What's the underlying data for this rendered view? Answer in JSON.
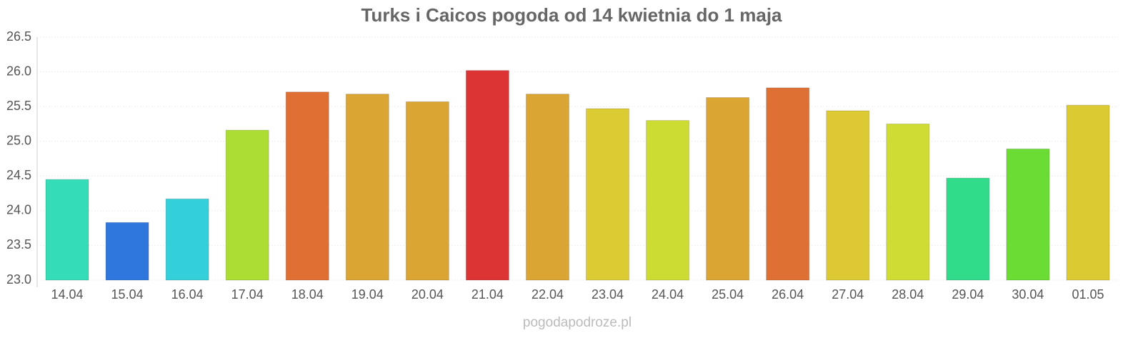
{
  "chart_data": {
    "type": "bar",
    "title": "Turks i Caicos pogoda od 14 kwietnia do 1 maja",
    "source": "pogodapodroze.pl",
    "categories": [
      "14.04",
      "15.04",
      "16.04",
      "17.04",
      "18.04",
      "19.04",
      "20.04",
      "21.04",
      "22.04",
      "23.04",
      "24.04",
      "25.04",
      "26.04",
      "27.04",
      "28.04",
      "29.04",
      "30.04",
      "01.05"
    ],
    "values": [
      24.45,
      23.83,
      24.17,
      25.16,
      25.71,
      25.68,
      25.57,
      26.02,
      25.68,
      25.47,
      25.3,
      25.63,
      25.77,
      25.44,
      25.25,
      24.47,
      24.89,
      25.52
    ],
    "colors": [
      "#35dcb8",
      "#3077dd",
      "#33d0da",
      "#abdd33",
      "#df6f33",
      "#dba533",
      "#dba533",
      "#dc3434",
      "#dba533",
      "#dccb33",
      "#cddc33",
      "#dba533",
      "#df7033",
      "#dcc933",
      "#cfdc33",
      "#30db8a",
      "#6adc33",
      "#dcca33"
    ],
    "ylim": [
      23,
      26.5
    ],
    "yticks": [
      {
        "value": 23,
        "label": "23.0"
      },
      23.5,
      {
        "value": 24,
        "label": "24.0"
      },
      24.5,
      {
        "value": 25,
        "label": "25.0"
      },
      25.5,
      {
        "value": 26,
        "label": "26.0"
      },
      26.5
    ],
    "grid": true
  }
}
